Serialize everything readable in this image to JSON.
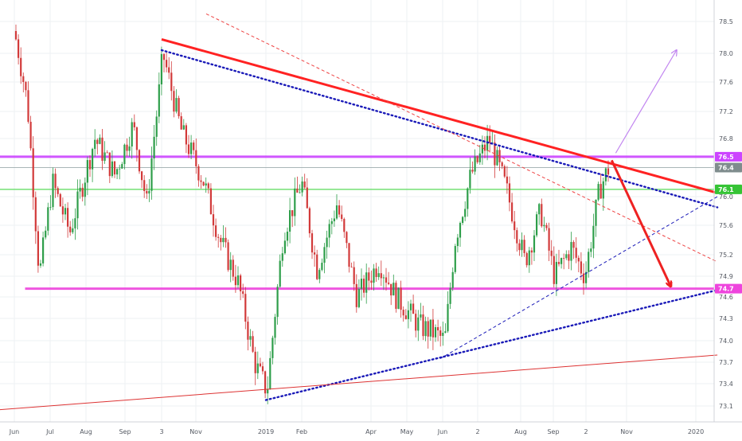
{
  "chart_data": {
    "type": "candlestick",
    "title": "",
    "xlabel": "",
    "ylabel": "",
    "ylim": [
      72.95,
      78.62
    ],
    "grid": true,
    "x_tick_labels": [
      "Jun",
      "Jul",
      "Aug",
      "Sep",
      "3",
      "Nov",
      "2019",
      "Feb",
      "Apr",
      "May",
      "Jun",
      "2",
      "Aug",
      "Sep",
      "2",
      "Nov",
      "2020"
    ],
    "y_tick_labels": [
      "78.5",
      "78.0",
      "77.6",
      "77.2",
      "76.8",
      "76.0",
      "75.6",
      "75.2",
      "74.9",
      "74.6",
      "74.3",
      "74.0",
      "73.7",
      "73.4",
      "73.1"
    ],
    "price_badges": [
      {
        "value": "76.5",
        "role": "resistance",
        "color": "#cc44ff"
      },
      {
        "value": "76.4",
        "role": "last-price",
        "color": "#7f8c8d"
      },
      {
        "value": "76.1",
        "role": "level",
        "color": "#35c435"
      },
      {
        "value": "74.7",
        "role": "support",
        "color": "#ee44dd"
      }
    ],
    "candles_path": [
      [
        "2018-06-01",
        78.35
      ],
      [
        "2018-06-12",
        77.3
      ],
      [
        "2018-06-22",
        74.9
      ],
      [
        "2018-07-03",
        76.2
      ],
      [
        "2018-07-18",
        75.5
      ],
      [
        "2018-08-08",
        76.8
      ],
      [
        "2018-08-24",
        76.3
      ],
      [
        "2018-09-08",
        77.0
      ],
      [
        "2018-09-20",
        75.9
      ],
      [
        "2018-10-01",
        77.5
      ],
      [
        "2018-10-04",
        78.0
      ],
      [
        "2018-10-20",
        76.9
      ],
      [
        "2018-11-08",
        76.2
      ],
      [
        "2018-11-22",
        75.4
      ],
      [
        "2018-12-08",
        74.8
      ],
      [
        "2018-12-22",
        73.7
      ],
      [
        "2019-01-02",
        73.3
      ],
      [
        "2019-01-16",
        75.5
      ],
      [
        "2019-02-01",
        76.2
      ],
      [
        "2019-02-14",
        75.0
      ],
      [
        "2019-03-03",
        75.9
      ],
      [
        "2019-03-20",
        74.6
      ],
      [
        "2019-04-08",
        75.1
      ],
      [
        "2019-04-22",
        74.6
      ],
      [
        "2019-05-12",
        74.2
      ],
      [
        "2019-05-25",
        74.1
      ],
      [
        "2019-06-03",
        74.0
      ],
      [
        "2019-06-12",
        75.4
      ],
      [
        "2019-06-26",
        76.3
      ],
      [
        "2019-07-10",
        76.8
      ],
      [
        "2019-07-22",
        76.1
      ],
      [
        "2019-08-05",
        75.1
      ],
      [
        "2019-08-20",
        75.8
      ],
      [
        "2019-09-02",
        74.9
      ],
      [
        "2019-09-18",
        75.3
      ],
      [
        "2019-10-01",
        74.9
      ],
      [
        "2019-10-12",
        76.1
      ],
      [
        "2019-10-19",
        76.4
      ]
    ],
    "drawings": [
      {
        "name": "red-downtrend-line",
        "color": "#ff2222",
        "style": "solid",
        "from": [
          "2018-10-03",
          78.22
        ],
        "to": [
          "2020-01-20",
          76.05
        ]
      },
      {
        "name": "blue-dotted-upper-trendline",
        "color": "#1a1ab8",
        "style": "dotted",
        "from": [
          "2018-10-03",
          78.05
        ],
        "to": [
          "2020-01-20",
          75.85
        ]
      },
      {
        "name": "blue-dotted-lower-trendline",
        "color": "#1a1ab8",
        "style": "dotted",
        "from": [
          "2019-01-01",
          73.18
        ],
        "to": [
          "2020-01-20",
          74.7
        ]
      },
      {
        "name": "blue-dashed-trendline",
        "color": "#1a1ab8",
        "style": "dashed",
        "from": [
          "2019-05-30",
          73.75
        ],
        "to": [
          "2020-01-20",
          76.0
        ]
      },
      {
        "name": "red-dashed-trendline",
        "color": "#ee4444",
        "style": "dashed",
        "from": [
          "2018-11-10",
          78.62
        ],
        "to": [
          "2020-01-20",
          75.1
        ]
      },
      {
        "name": "thin-red-long-trendline",
        "color": "#dd3333",
        "style": "thin",
        "from": [
          "2018-05-20",
          73.05
        ],
        "to": [
          "2020-01-20",
          73.8
        ]
      },
      {
        "name": "violet-up-arrow",
        "color": "#c184f0",
        "style": "arrow",
        "from": [
          "2019-10-24",
          76.6
        ],
        "to": [
          "2019-12-15",
          78.05
        ]
      },
      {
        "name": "red-down-arrow",
        "color": "#ee2222",
        "style": "arrow",
        "from": [
          "2019-10-21",
          76.5
        ],
        "to": [
          "2019-12-10",
          74.75
        ]
      }
    ],
    "horizontal_levels": [
      {
        "value": 76.55,
        "color": "#cc44ff",
        "from": "2018-05-20"
      },
      {
        "value": 76.4,
        "color": "#95a5a6",
        "from": "2018-05-20"
      },
      {
        "value": 76.1,
        "color": "#66dd66",
        "from": "2018-05-20"
      },
      {
        "value": 74.72,
        "color": "#ee44dd",
        "from": "2018-06-10"
      }
    ]
  }
}
